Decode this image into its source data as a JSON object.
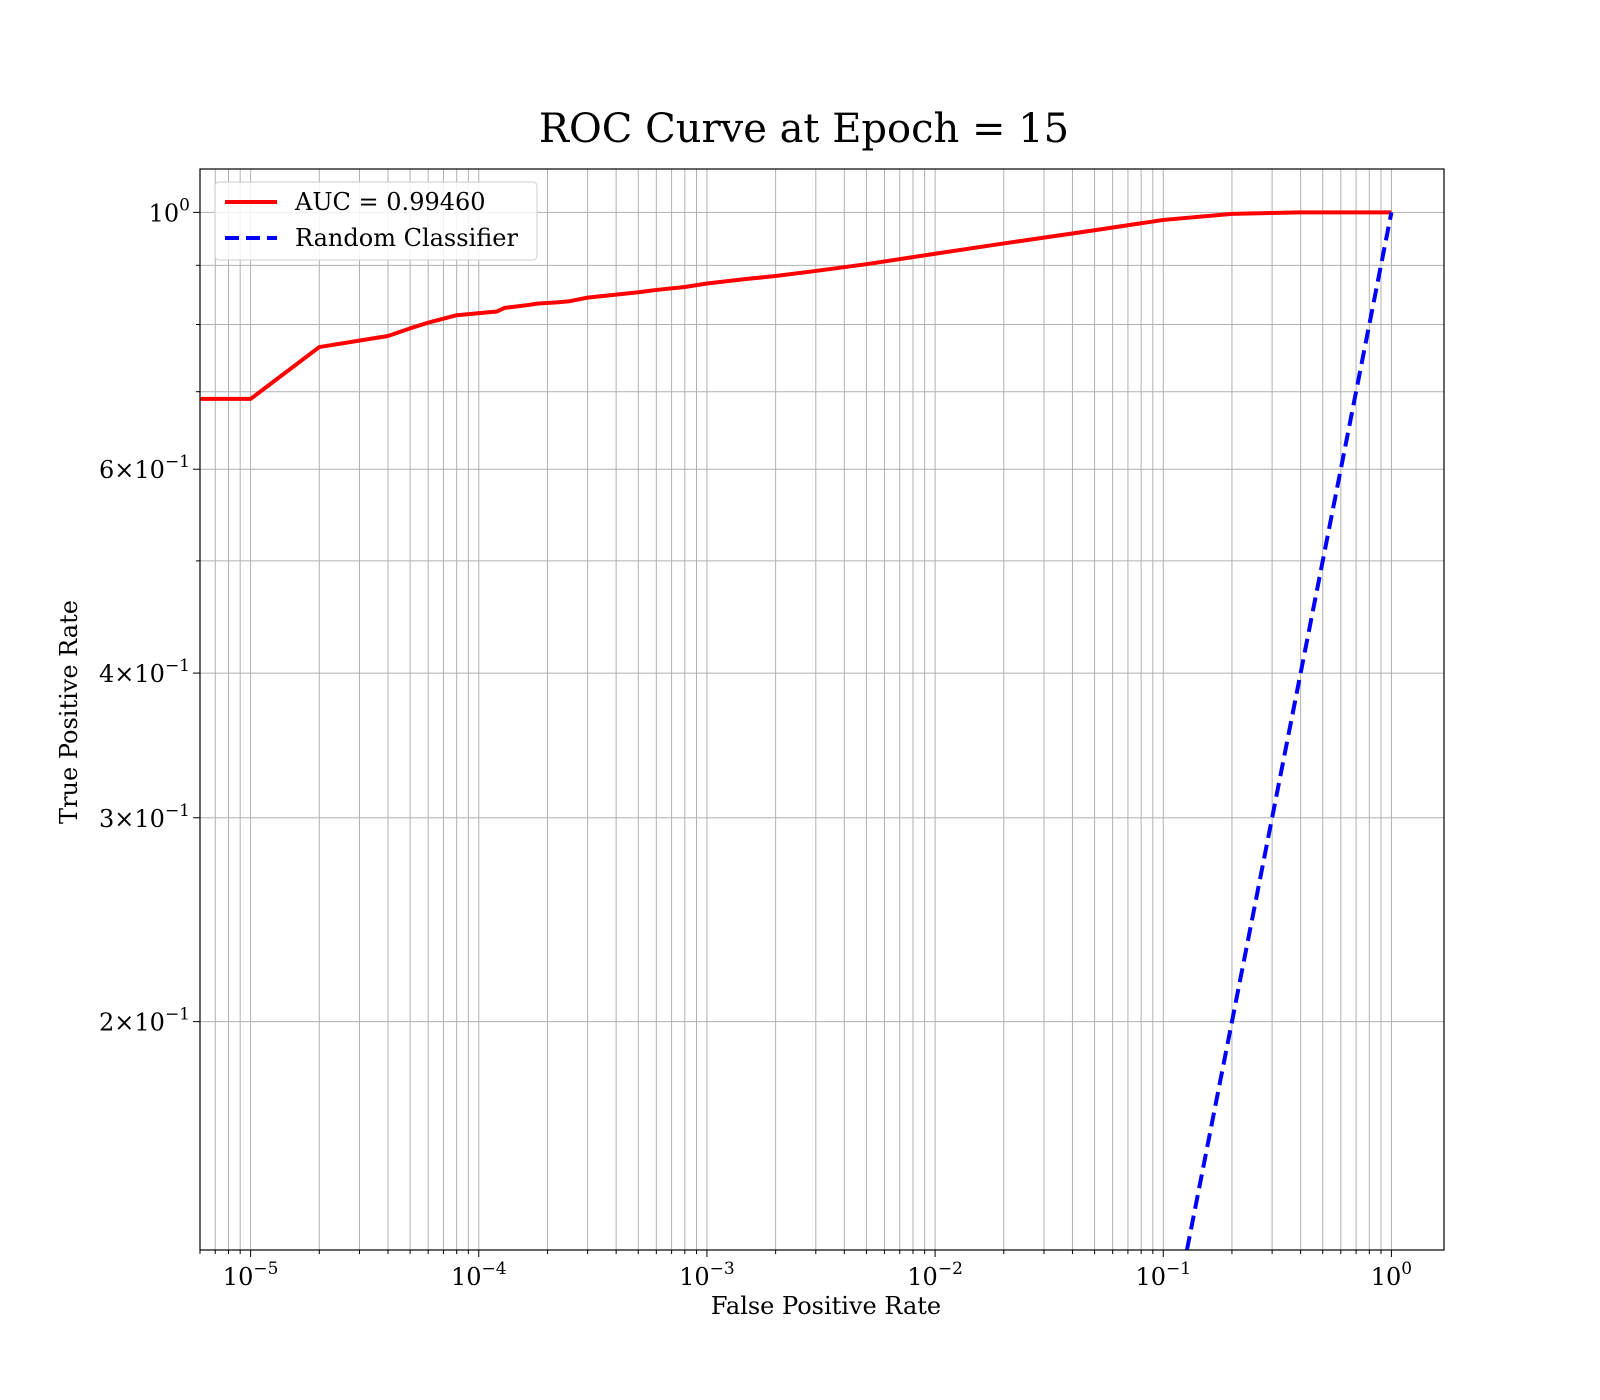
{
  "chart_data": {
    "type": "line",
    "title": "ROC Curve at Epoch = 15",
    "xlabel": "False Positive Rate",
    "ylabel": "True Positive Rate",
    "xscale": "log",
    "yscale": "log",
    "xlim": [
      6e-06,
      1.7
    ],
    "ylim": [
      0.127,
      1.09
    ],
    "grid": true,
    "grid_which": "both",
    "legend": {
      "location": "upper-left"
    },
    "x_ticks": [
      {
        "value": 1e-05,
        "base": "10",
        "exp": "−5"
      },
      {
        "value": 0.0001,
        "base": "10",
        "exp": "−4"
      },
      {
        "value": 0.001,
        "base": "10",
        "exp": "−3"
      },
      {
        "value": 0.01,
        "base": "10",
        "exp": "−2"
      },
      {
        "value": 0.1,
        "base": "10",
        "exp": "−1"
      },
      {
        "value": 1,
        "base": "10",
        "exp": "0"
      }
    ],
    "y_ticks": [
      {
        "value": 1.0,
        "mantissa": "",
        "base": "10",
        "exp": "0"
      },
      {
        "value": 0.6,
        "mantissa": "6×",
        "base": "10",
        "exp": "−1"
      },
      {
        "value": 0.4,
        "mantissa": "4×",
        "base": "10",
        "exp": "−1"
      },
      {
        "value": 0.3,
        "mantissa": "3×",
        "base": "10",
        "exp": "−1"
      },
      {
        "value": 0.2,
        "mantissa": "2×",
        "base": "10",
        "exp": "−1"
      }
    ],
    "y_minor_grid": [
      0.9,
      0.8,
      0.7,
      0.5
    ],
    "series": [
      {
        "name": "AUC = 0.99460",
        "color": "#ff0000",
        "style": "solid",
        "x": [
          6e-06,
          1e-05,
          2e-05,
          4e-05,
          5e-05,
          6e-05,
          8e-05,
          0.00012,
          0.00013,
          0.00016,
          0.00018,
          0.00022,
          0.00025,
          0.0003,
          0.0004,
          0.0005,
          0.0006,
          0.0008,
          0.001,
          0.0015,
          0.002,
          0.003,
          0.005,
          0.01,
          0.02,
          0.05,
          0.1,
          0.2,
          0.4,
          0.6,
          1.0
        ],
        "y": [
          0.69,
          0.69,
          0.765,
          0.782,
          0.794,
          0.803,
          0.815,
          0.821,
          0.827,
          0.831,
          0.834,
          0.836,
          0.838,
          0.844,
          0.849,
          0.853,
          0.857,
          0.862,
          0.868,
          0.876,
          0.881,
          0.89,
          0.902,
          0.921,
          0.94,
          0.965,
          0.985,
          0.997,
          1.0,
          1.0,
          1.0
        ]
      },
      {
        "name": "Random Classifier",
        "color": "#0000ff",
        "style": "dashed",
        "x": [
          0.127,
          1.0
        ],
        "y": [
          0.127,
          1.0
        ]
      }
    ]
  }
}
